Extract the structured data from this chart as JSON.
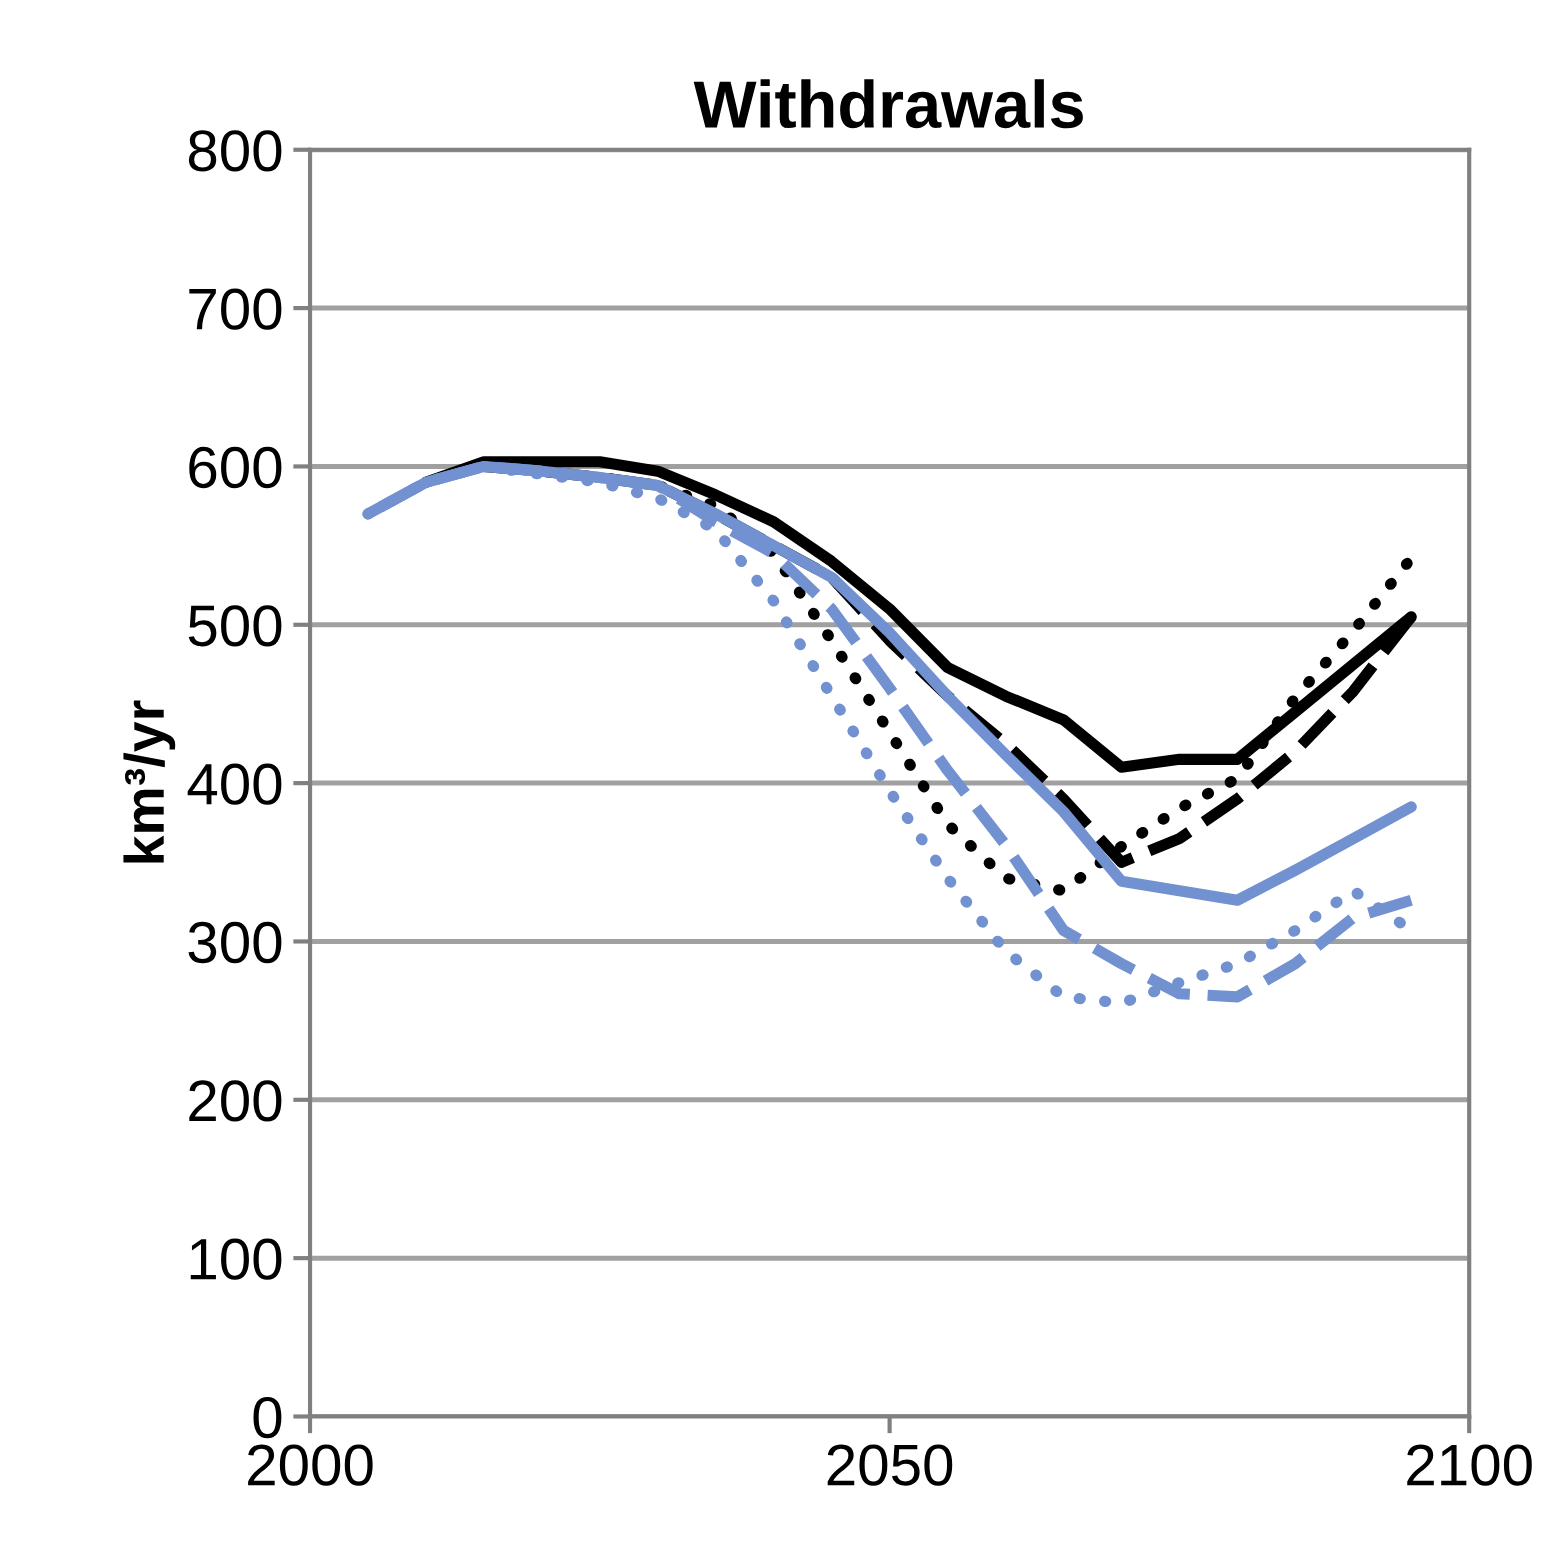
{
  "chart_data": {
    "type": "line",
    "title": "Withdrawals",
    "ylabel": "km³/yr",
    "x": [
      2005,
      2010,
      2015,
      2020,
      2025,
      2030,
      2035,
      2040,
      2045,
      2050,
      2055,
      2060,
      2065,
      2070,
      2075,
      2080,
      2085,
      2090,
      2095
    ],
    "series": [
      {
        "color": "#000000",
        "line_style": "solid",
        "values": [
          null,
          590,
          603,
          603,
          603,
          597,
          582,
          565,
          540,
          510,
          473,
          455,
          440,
          410,
          415,
          415,
          445,
          475,
          505
        ]
      },
      {
        "color": "#000000",
        "line_style": "dashed",
        "values": [
          null,
          null,
          600,
          597,
          593,
          588,
          570,
          550,
          530,
          490,
          455,
          425,
          390,
          350,
          365,
          390,
          420,
          458,
          505
        ]
      },
      {
        "color": "#000000",
        "line_style": "dotted",
        "values": [
          null,
          null,
          600,
          597,
          593,
          588,
          575,
          545,
          490,
          432,
          374,
          340,
          332,
          360,
          384,
          403,
          454,
          496,
          542
        ]
      },
      {
        "color": "#7291d1",
        "line_style": "solid",
        "values": [
          570,
          590,
          600,
          597,
          593,
          588,
          570,
          550,
          530,
          495,
          455,
          418,
          382,
          338,
          332,
          326,
          345,
          365,
          385
        ]
      },
      {
        "color": "#7291d1",
        "line_style": "dashed",
        "values": [
          570,
          590,
          600,
          597,
          593,
          588,
          565,
          545,
          510,
          460,
          408,
          361,
          307,
          286,
          267,
          265,
          286,
          315,
          326
        ]
      },
      {
        "color": "#7291d1",
        "line_style": "dotted",
        "values": [
          570,
          590,
          600,
          595,
          590,
          580,
          560,
          515,
          455,
          395,
          340,
          294,
          265,
          261,
          274,
          286,
          307,
          332,
          307
        ]
      }
    ],
    "xlim": [
      2000,
      2100
    ],
    "xticks": [
      2000,
      2050,
      2100
    ],
    "ylim": [
      0,
      800
    ],
    "yticks": [
      0,
      100,
      200,
      300,
      400,
      500,
      600,
      700,
      800
    ],
    "grid": "y",
    "marker": "none"
  }
}
